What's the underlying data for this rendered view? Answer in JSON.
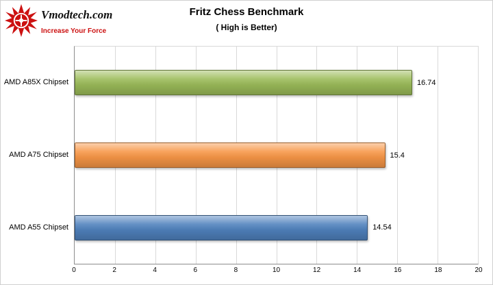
{
  "logo": {
    "brand": "Vmodtech.com",
    "tagline": "Increase Your Force",
    "icon_color": "#cc1111"
  },
  "chart_data": {
    "type": "bar",
    "orientation": "horizontal",
    "title": "Fritz Chess Benchmark",
    "subtitle": "( High is Better)",
    "categories": [
      "AMD A85X Chipset",
      "AMD A75 Chipset",
      "AMD A55 Chipset"
    ],
    "values": [
      16.74,
      15.4,
      14.54
    ],
    "value_labels": [
      "16.74",
      "15.4",
      "14.54"
    ],
    "colors": [
      "#9bbb59",
      "#f79646",
      "#4f81bd"
    ],
    "xlim": [
      0,
      20
    ],
    "xticks": [
      0,
      2,
      4,
      6,
      8,
      10,
      12,
      14,
      16,
      18,
      20
    ],
    "grid": true,
    "legend": "none",
    "gridline_color": "#d9d9d9"
  }
}
